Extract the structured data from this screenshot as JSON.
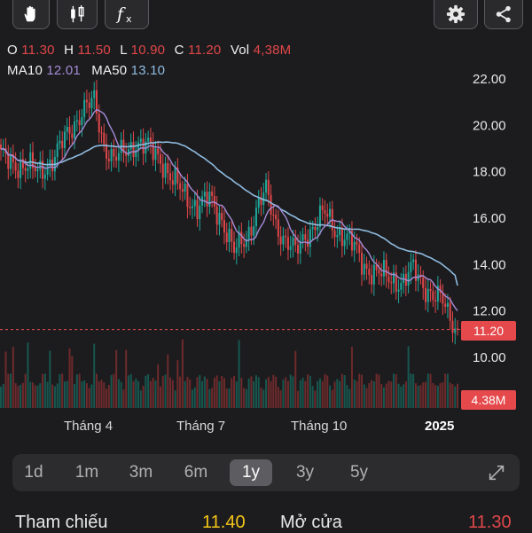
{
  "toolbar": {
    "left": [
      {
        "icon": "hand-icon"
      },
      {
        "icon": "candlestick-icon"
      },
      {
        "icon": "function-icon"
      }
    ],
    "right": [
      {
        "icon": "gear-icon"
      },
      {
        "icon": "share-icon"
      }
    ]
  },
  "ohlc": {
    "o_label": "O",
    "o": "11.30",
    "h_label": "H",
    "h": "11.50",
    "l_label": "L",
    "l": "10.90",
    "c_label": "C",
    "c": "11.20",
    "vol_label": "Vol",
    "vol": "4,38M"
  },
  "ma": {
    "ma10_label": "MA10",
    "ma10": "12.01",
    "ma50_label": "MA50",
    "ma50": "13.10"
  },
  "price_axis": [
    "22.00",
    "20.00",
    "18.00",
    "16.00",
    "14.00",
    "12.00",
    "10.00"
  ],
  "current_price_label": "11.20",
  "current_volume_label": "4.38M",
  "time_axis": [
    "Tháng 4",
    "Tháng 7",
    "Tháng 10",
    "2025"
  ],
  "timeframes": [
    "1d",
    "1m",
    "3m",
    "6m",
    "1y",
    "3y",
    "5y"
  ],
  "selected_timeframe": "1y",
  "bottom": {
    "ref_label": "Tham chiếu",
    "ref_value": "11.40",
    "open_label": "Mở cửa",
    "open_value": "11.30"
  },
  "colors": {
    "up": "#1fa89b",
    "down": "#e0474a",
    "ma10": "#a58bd6",
    "ma50": "#8fbbe0",
    "ref_value": "#f5c518"
  },
  "chart_data": {
    "type": "candlestick",
    "ylim": [
      10,
      22
    ],
    "current_price": 11.2,
    "last_volume": "4.38M",
    "ma10_last": 12.01,
    "ma50_last": 13.1,
    "close_keypoints": [
      [
        0,
        18.6
      ],
      [
        8,
        18.3
      ],
      [
        15,
        18.0
      ],
      [
        22,
        18.6
      ],
      [
        28,
        19.8
      ],
      [
        33,
        20.6
      ],
      [
        38,
        21.0
      ],
      [
        42,
        19.2
      ],
      [
        46,
        18.5
      ],
      [
        50,
        18.8
      ],
      [
        55,
        19.3
      ],
      [
        60,
        19.0
      ],
      [
        65,
        18.6
      ],
      [
        70,
        17.6
      ],
      [
        75,
        17.0
      ],
      [
        80,
        16.5
      ],
      [
        85,
        16.8
      ],
      [
        90,
        16.0
      ],
      [
        95,
        14.5
      ],
      [
        100,
        15.2
      ],
      [
        105,
        16.6
      ],
      [
        108,
        17.1
      ],
      [
        112,
        15.8
      ],
      [
        116,
        15.0
      ],
      [
        120,
        14.5
      ],
      [
        124,
        15.3
      ],
      [
        128,
        15.7
      ],
      [
        132,
        16.2
      ],
      [
        136,
        15.6
      ],
      [
        140,
        15.2
      ],
      [
        144,
        14.7
      ],
      [
        148,
        14.0
      ],
      [
        152,
        13.6
      ],
      [
        156,
        13.5
      ],
      [
        160,
        13.4
      ],
      [
        164,
        13.2
      ],
      [
        168,
        13.8
      ],
      [
        172,
        13.2
      ],
      [
        176,
        12.6
      ],
      [
        180,
        12.4
      ],
      [
        184,
        11.6
      ],
      [
        186,
        11.2
      ]
    ]
  }
}
